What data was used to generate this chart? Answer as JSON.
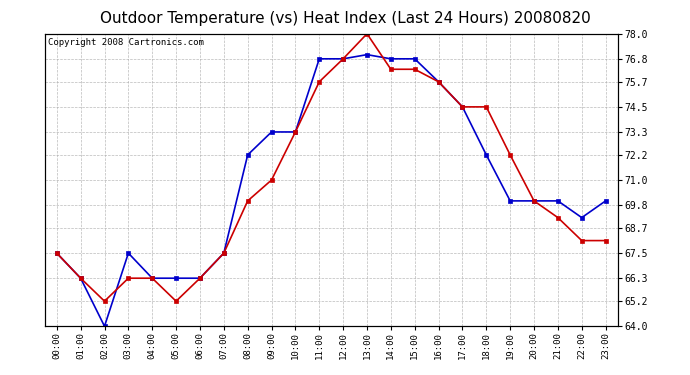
{
  "title": "Outdoor Temperature (vs) Heat Index (Last 24 Hours) 20080820",
  "copyright": "Copyright 2008 Cartronics.com",
  "x_labels": [
    "00:00",
    "01:00",
    "02:00",
    "03:00",
    "04:00",
    "05:00",
    "06:00",
    "07:00",
    "08:00",
    "09:00",
    "10:00",
    "11:00",
    "12:00",
    "13:00",
    "14:00",
    "15:00",
    "16:00",
    "17:00",
    "18:00",
    "19:00",
    "20:00",
    "21:00",
    "22:00",
    "23:00"
  ],
  "temp_blue": [
    67.5,
    66.3,
    64.0,
    67.5,
    66.3,
    66.3,
    66.3,
    67.5,
    72.2,
    73.3,
    73.3,
    76.8,
    76.8,
    77.0,
    76.8,
    76.8,
    75.7,
    74.5,
    72.2,
    70.0,
    70.0,
    70.0,
    69.2,
    70.0
  ],
  "heat_red": [
    67.5,
    66.3,
    65.2,
    66.3,
    66.3,
    65.2,
    66.3,
    67.5,
    70.0,
    71.0,
    73.3,
    75.7,
    76.8,
    78.0,
    76.3,
    76.3,
    75.7,
    74.5,
    74.5,
    72.2,
    70.0,
    69.2,
    68.1,
    68.1
  ],
  "ylim": [
    64.0,
    78.0
  ],
  "yticks": [
    64.0,
    65.2,
    66.3,
    67.5,
    68.7,
    69.8,
    71.0,
    72.2,
    73.3,
    74.5,
    75.7,
    76.8,
    78.0
  ],
  "background_color": "#ffffff",
  "grid_color": "#aaaaaa",
  "blue_color": "#0000cc",
  "red_color": "#cc0000",
  "title_fontsize": 11,
  "copyright_fontsize": 6.5
}
